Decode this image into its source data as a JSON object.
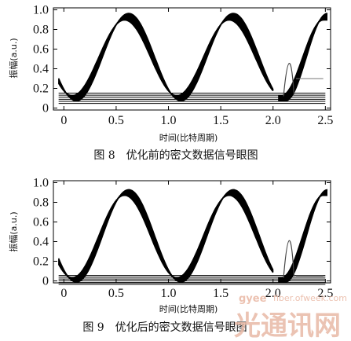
{
  "chart_data": [
    {
      "type": "line",
      "subtype": "eye-diagram",
      "caption": "图 8　优化前的密文数据信号眼图",
      "xlabel": "时间(比特周期)",
      "ylabel": "振幅(a.u.)",
      "xlim": [
        -0.1,
        2.55
      ],
      "ylim": [
        -0.02,
        1.02
      ],
      "xticks": [
        0,
        0.5,
        1.0,
        1.5,
        2.0,
        2.5
      ],
      "xtick_labels": [
        "0",
        "0.5",
        "1.0",
        "1.5",
        "2.0",
        "2.5"
      ],
      "yticks": [
        0,
        0.2,
        0.4,
        0.6,
        0.8,
        1.0
      ],
      "ytick_labels": [
        "0",
        "0.2",
        "0.4",
        "0.6",
        "0.8",
        "1.0"
      ],
      "grid": false,
      "eye": {
        "high_level": 0.93,
        "low_level": 0.1,
        "trace_spread": 0.07,
        "crossing_times": [
          0.1,
          1.1,
          2.1
        ],
        "peak_times": [
          0.5,
          1.5
        ]
      }
    },
    {
      "type": "line",
      "subtype": "eye-diagram",
      "caption": "图 9　优化后的密文数据信号眼图",
      "xlabel": "时间(比特周期)",
      "ylabel": "振幅(a.u.)",
      "xlim": [
        -0.1,
        2.55
      ],
      "ylim": [
        -0.02,
        1.02
      ],
      "xticks": [
        0,
        0.5,
        1.0,
        1.5,
        2.0,
        2.5
      ],
      "xtick_labels": [
        "0",
        "0.5",
        "1.0",
        "1.5",
        "2.0",
        "2.5"
      ],
      "yticks": [
        0,
        0.2,
        0.4,
        0.6,
        0.8,
        1.0
      ],
      "ytick_labels": [
        "0",
        "0.2",
        "0.4",
        "0.6",
        "0.8",
        "1.0"
      ],
      "grid": false,
      "eye": {
        "high_level": 0.9,
        "low_level": 0.01,
        "trace_spread": 0.06,
        "crossing_times": [
          0.1,
          1.1,
          2.1
        ],
        "peak_times": [
          0.5,
          1.5
        ]
      }
    }
  ],
  "watermark": {
    "logo": "gyee",
    "url": "fiber.ofweek.com",
    "site": "光通讯网"
  },
  "colors": {
    "trace": "#000000",
    "axis": "#000000",
    "plot_background": "#ffffff",
    "watermark": "#e8b9a6"
  }
}
